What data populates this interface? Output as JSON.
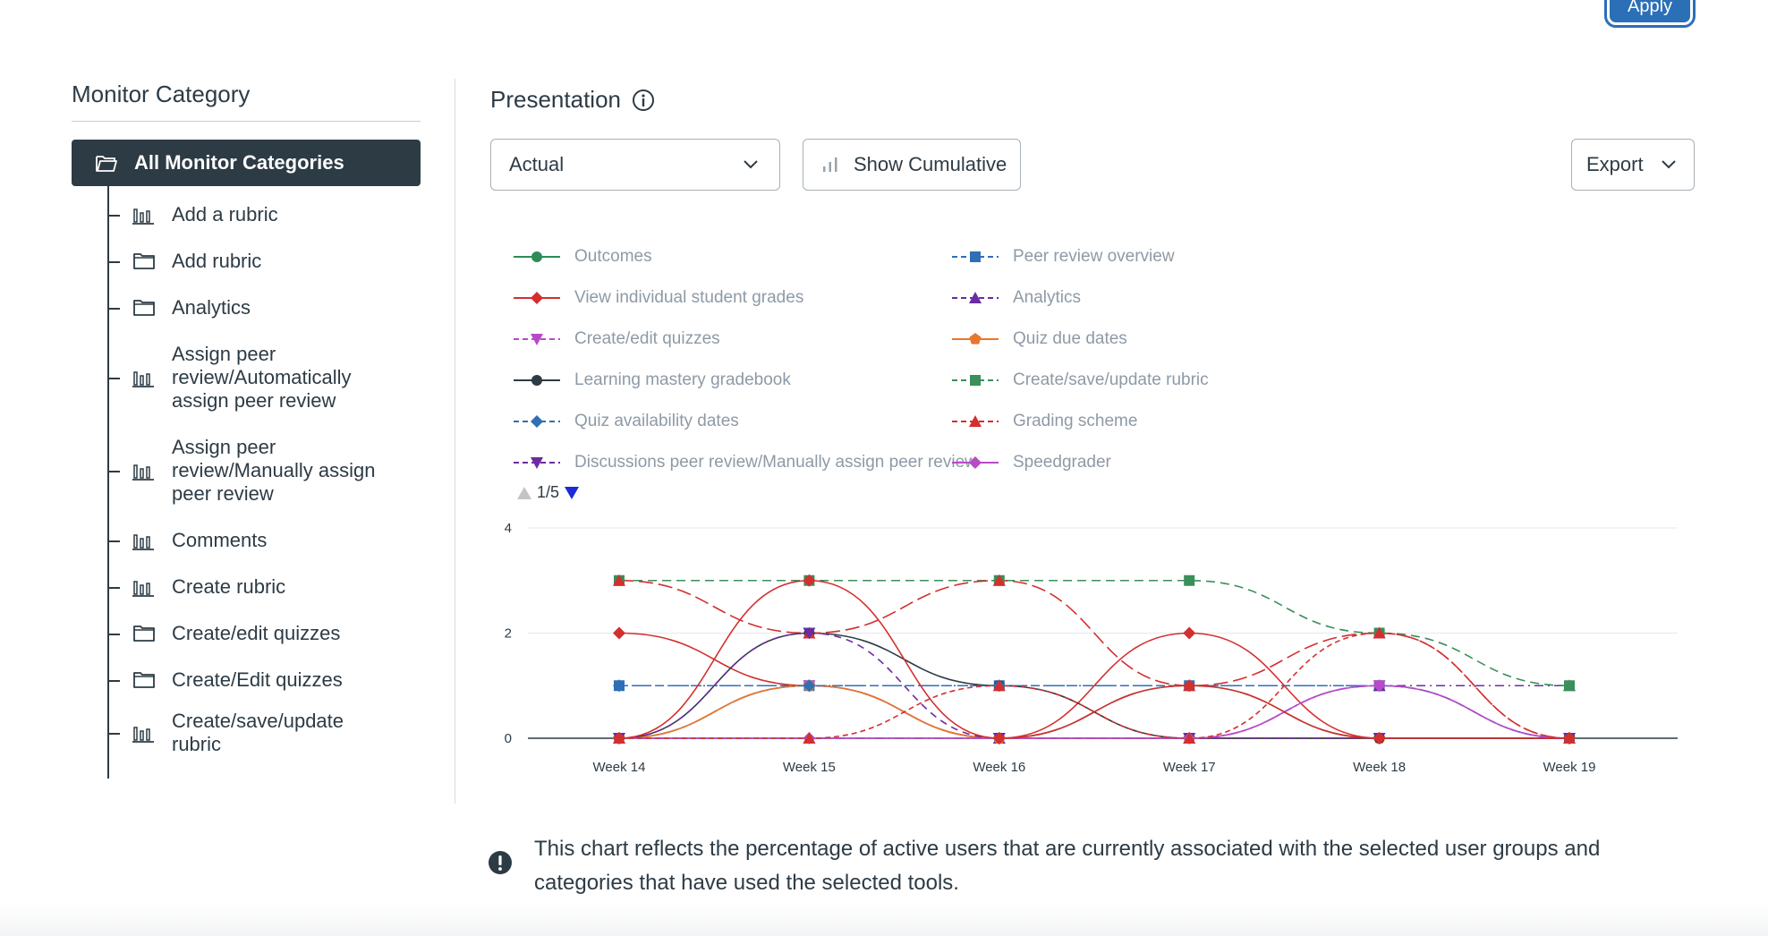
{
  "header": {
    "apply_label": "Apply"
  },
  "sidebar": {
    "title": "Monitor Category",
    "all_label": "All Monitor Categories",
    "items": [
      {
        "label": "Add a rubric",
        "icon": "bar-chart-icon"
      },
      {
        "label": "Add rubric",
        "icon": "folder-icon"
      },
      {
        "label": "Analytics",
        "icon": "folder-icon"
      },
      {
        "label": "Assign peer review/Automatically assign peer review",
        "icon": "bar-chart-icon"
      },
      {
        "label": "Assign peer review/Manually assign peer review",
        "icon": "bar-chart-icon"
      },
      {
        "label": "Comments",
        "icon": "bar-chart-icon"
      },
      {
        "label": "Create rubric",
        "icon": "bar-chart-icon"
      },
      {
        "label": "Create/edit quizzes",
        "icon": "folder-icon"
      },
      {
        "label": "Create/Edit quizzes",
        "icon": "folder-icon"
      },
      {
        "label": "Create/save/update rubric",
        "icon": "bar-chart-icon"
      }
    ]
  },
  "main": {
    "presentation_label": "Presentation",
    "select_value": "Actual",
    "cumulative_label": "Show Cumulative",
    "export_label": "Export",
    "pager_text": "1/5",
    "note": "This chart reflects the percentage of active users that are currently associated with the selected user groups and categories that have used the selected tools."
  },
  "chart_data": {
    "type": "line",
    "categories": [
      "Week 14",
      "Week 15",
      "Week 16",
      "Week 17",
      "Week 18",
      "Week 19"
    ],
    "ylim": [
      0,
      4
    ],
    "yticks": [
      0,
      2,
      4
    ],
    "grid": true,
    "legend_position": "top",
    "series": [
      {
        "name": "Outcomes",
        "color": "#2e8b57",
        "marker": "circle",
        "dash": "",
        "values": [
          0,
          1,
          0,
          1,
          0,
          0
        ]
      },
      {
        "name": "Peer review overview",
        "color": "#2f6fb5",
        "marker": "square",
        "dash": "8,6",
        "values": [
          1,
          1,
          1,
          1,
          1,
          0
        ]
      },
      {
        "name": "View individual student grades",
        "color": "#d32f2f",
        "marker": "diamond",
        "dash": "",
        "values": [
          2,
          1,
          0,
          2,
          0,
          0
        ]
      },
      {
        "name": "Analytics",
        "color": "#6a2ca0",
        "marker": "triangle",
        "dash": "10,5,2,5",
        "values": [
          0,
          0,
          0,
          0,
          1,
          1
        ]
      },
      {
        "name": "Create/edit quizzes",
        "color": "#b84ac7",
        "marker": "triangle-down",
        "dash": "4,4",
        "values": [
          0,
          1,
          0,
          0,
          1,
          0
        ]
      },
      {
        "name": "Quiz due dates",
        "color": "#e8772e",
        "marker": "pentagon",
        "dash": "",
        "values": [
          0,
          1,
          0,
          0,
          0,
          0
        ]
      },
      {
        "name": "Learning mastery gradebook",
        "color": "#2d3b45",
        "marker": "circle",
        "dash": "",
        "values": [
          0,
          2,
          1,
          0,
          0,
          0
        ]
      },
      {
        "name": "Create/save/update rubric",
        "color": "#3a8f5a",
        "marker": "square",
        "dash": "10,6",
        "values": [
          3,
          3,
          3,
          3,
          2,
          1
        ]
      },
      {
        "name": "Quiz availability dates",
        "color": "#2f6fb5",
        "marker": "diamond",
        "dash": "10,4,2,4",
        "values": [
          1,
          1,
          1,
          1,
          1,
          0
        ]
      },
      {
        "name": "Grading scheme",
        "color": "#d32f2f",
        "marker": "triangle",
        "dash": "16,6",
        "values": [
          3,
          2,
          3,
          1,
          2,
          0
        ]
      },
      {
        "name": "Discussions peer review/Manually assign peer review",
        "color": "#6a2ca0",
        "marker": "triangle-down",
        "dash": "8,6",
        "values": [
          0,
          2,
          0,
          0,
          0,
          0
        ]
      },
      {
        "name": "Speedgrader",
        "color": "#b84ac7",
        "marker": "diamond",
        "dash": "",
        "values": [
          0,
          0,
          0,
          0,
          1,
          0
        ]
      },
      {
        "name": "",
        "color": "#d32f2f",
        "marker": "triangle",
        "dash": "6,4",
        "values": [
          0,
          0,
          1,
          0,
          2,
          0
        ]
      },
      {
        "name": "",
        "color": "#d32f2f",
        "marker": "diamond",
        "dash": "",
        "values": [
          0,
          3,
          0,
          1,
          0,
          0
        ]
      }
    ]
  },
  "colors": {
    "dark": "#2d3b45",
    "accent": "#2b6fb6",
    "border": "#a8b0b6"
  },
  "icons": {
    "presentation_info": "info-icon",
    "select_chevron": "chevron-down-icon",
    "cumulative": "bar-chart-icon",
    "note": "warning-icon"
  }
}
